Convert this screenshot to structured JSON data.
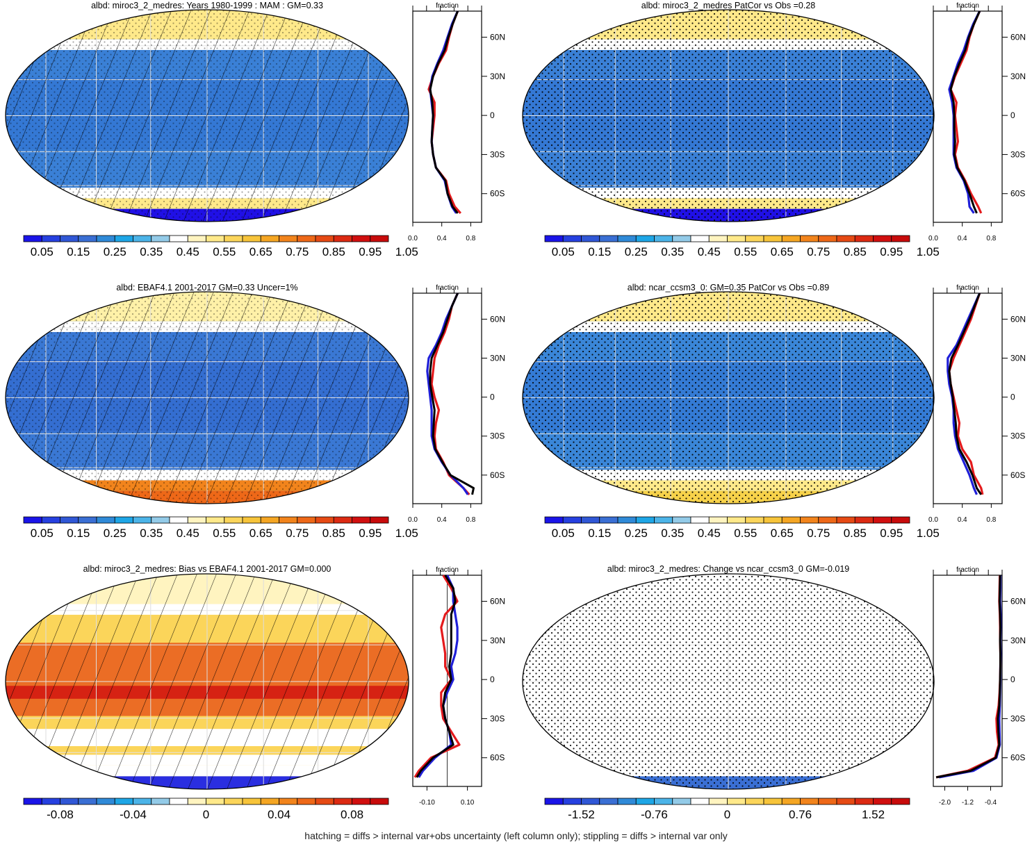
{
  "figure": {
    "footer": "hatching = diffs > internal var+obs uncertainty (left column only); stippling = diffs > internal var only"
  },
  "palette_full": [
    "#1a14e8",
    "#2640e0",
    "#3057d6",
    "#3a6fd4",
    "#2f8ad8",
    "#1ea6e6",
    "#4cb4e8",
    "#93cbe8",
    "#ffffff",
    "#fff4c0",
    "#ffe98a",
    "#fbd55a",
    "#f7c43a",
    "#f5a623",
    "#f2841c",
    "#ee6818",
    "#e64a14",
    "#dc2a12",
    "#d10f0f",
    "#c80b0b"
  ],
  "axis_labels": {
    "lat_ticks": [
      "60N",
      "30N",
      "0",
      "30S",
      "60S"
    ],
    "strip_header": "fraction"
  },
  "panels": [
    {
      "title": "albd: miroc3_2_medres: Years 1980-1999 : MAM : GM=0.33",
      "map_style": "albedo",
      "hatch": true,
      "stipple": true,
      "colorbar_labels": [
        "0.05",
        "0.15",
        "0.25",
        "0.35",
        "0.45",
        "0.55",
        "0.65",
        "0.75",
        "0.85",
        "0.95",
        "1.05"
      ],
      "strip_ticks": [
        "0.0",
        "0.4",
        "0.8"
      ]
    },
    {
      "title": "albd: miroc3_2_medres PatCor vs Obs =0.28",
      "map_style": "albedo",
      "hatch": false,
      "stipple": true,
      "colorbar_labels": [
        "0.05",
        "0.15",
        "0.25",
        "0.35",
        "0.45",
        "0.55",
        "0.65",
        "0.75",
        "0.85",
        "0.95",
        "1.05"
      ],
      "strip_ticks": [
        "0.0",
        "0.4",
        "0.8"
      ]
    },
    {
      "title": "albd: EBAF4.1 2001-2017 GM=0.33 Uncer=1%",
      "map_style": "albedo_obs",
      "hatch": true,
      "stipple": true,
      "colorbar_labels": [
        "0.05",
        "0.15",
        "0.25",
        "0.35",
        "0.45",
        "0.55",
        "0.65",
        "0.75",
        "0.85",
        "0.95",
        "1.05"
      ],
      "strip_ticks": [
        "0.0",
        "0.4",
        "0.8"
      ]
    },
    {
      "title": "albd: ncar_ccsm3_0: GM=0.35 PatCor vs Obs =0.89",
      "map_style": "albedo_ncar",
      "hatch": false,
      "stipple": true,
      "colorbar_labels": [
        "0.05",
        "0.15",
        "0.25",
        "0.35",
        "0.45",
        "0.55",
        "0.65",
        "0.75",
        "0.85",
        "0.95",
        "1.05"
      ],
      "strip_ticks": [
        "0.0",
        "0.4",
        "0.8"
      ]
    },
    {
      "title": "albd: miroc3_2_medres: Bias vs EBAF4.1 2001-2017 GM=0.000",
      "map_style": "bias",
      "hatch": true,
      "stipple": false,
      "colorbar_labels": [
        "-0.08",
        "-0.04",
        "0",
        "0.04",
        "0.08"
      ],
      "strip_ticks": [
        "-0.10",
        "0.10"
      ]
    },
    {
      "title": "albd: miroc3_2_medres: Change vs ncar_ccsm3_0 GM=-0.019",
      "map_style": "change",
      "hatch": false,
      "stipple": true,
      "colorbar_labels": [
        "-1.52",
        "-0.76",
        "0",
        "0.76",
        "1.52"
      ],
      "strip_ticks": [
        "-2.0",
        "-1.2",
        "-0.4"
      ]
    }
  ],
  "chart_data": [
    {
      "type": "line",
      "title": "albd: miroc3_2_medres: Years 1980-1999 : MAM : GM=0.33",
      "xlabel": "fraction",
      "xlim": [
        0.0,
        0.95
      ],
      "ylim": [
        -90,
        90
      ],
      "x_ticks": [
        "0.0",
        "0.4",
        "0.8"
      ],
      "y_ticks": [
        "60N",
        "30N",
        "0",
        "30S",
        "60S"
      ],
      "lat": [
        80,
        70,
        60,
        50,
        40,
        30,
        20,
        10,
        0,
        -10,
        -20,
        -30,
        -40,
        -50,
        -60,
        -70,
        -75
      ],
      "series": [
        {
          "color": "#e41a1c",
          "values": [
            0.62,
            0.55,
            0.5,
            0.46,
            0.36,
            0.28,
            0.22,
            0.3,
            0.3,
            0.28,
            0.26,
            0.28,
            0.32,
            0.46,
            0.5,
            0.58,
            0.66
          ]
        },
        {
          "color": "#1f1fd8",
          "values": [
            0.62,
            0.54,
            0.48,
            0.42,
            0.34,
            0.27,
            0.24,
            0.26,
            0.28,
            0.27,
            0.26,
            0.28,
            0.32,
            0.44,
            0.48,
            0.54,
            0.6
          ]
        },
        {
          "color": "#000000",
          "values": [
            0.62,
            0.55,
            0.49,
            0.44,
            0.35,
            0.28,
            0.24,
            0.27,
            0.28,
            0.27,
            0.26,
            0.28,
            0.32,
            0.45,
            0.48,
            0.55,
            0.62
          ]
        }
      ]
    },
    {
      "type": "line",
      "title": "albd: miroc3_2_medres PatCor vs Obs =0.28",
      "xlabel": "fraction",
      "xlim": [
        0.0,
        0.95
      ],
      "ylim": [
        -90,
        90
      ],
      "x_ticks": [
        "0.0",
        "0.4",
        "0.8"
      ],
      "y_ticks": [
        "60N",
        "30N",
        "0",
        "30S",
        "60S"
      ],
      "lat": [
        80,
        70,
        60,
        50,
        40,
        30,
        20,
        10,
        0,
        -10,
        -20,
        -30,
        -40,
        -50,
        -60,
        -70,
        -75
      ],
      "series": [
        {
          "color": "#e41a1c",
          "values": [
            0.64,
            0.56,
            0.5,
            0.46,
            0.38,
            0.3,
            0.24,
            0.32,
            0.3,
            0.32,
            0.34,
            0.3,
            0.34,
            0.44,
            0.52,
            0.62,
            0.66
          ]
        },
        {
          "color": "#1f1fd8",
          "values": [
            0.64,
            0.55,
            0.48,
            0.42,
            0.34,
            0.28,
            0.22,
            0.26,
            0.28,
            0.28,
            0.28,
            0.28,
            0.32,
            0.42,
            0.48,
            0.5,
            0.56
          ]
        },
        {
          "color": "#000000",
          "values": [
            0.64,
            0.56,
            0.49,
            0.44,
            0.36,
            0.29,
            0.24,
            0.28,
            0.29,
            0.29,
            0.3,
            0.29,
            0.33,
            0.43,
            0.5,
            0.56,
            0.6
          ]
        }
      ]
    },
    {
      "type": "line",
      "title": "albd: EBAF4.1 2001-2017 GM=0.33 Uncer=1%",
      "xlabel": "fraction",
      "xlim": [
        0.0,
        0.95
      ],
      "ylim": [
        -90,
        90
      ],
      "x_ticks": [
        "0.0",
        "0.4",
        "0.8"
      ],
      "y_ticks": [
        "60N",
        "30N",
        "0",
        "30S",
        "60S"
      ],
      "lat": [
        80,
        70,
        60,
        50,
        40,
        30,
        20,
        10,
        0,
        -10,
        -20,
        -30,
        -40,
        -50,
        -60,
        -70,
        -75
      ],
      "series": [
        {
          "color": "#e41a1c",
          "values": [
            0.62,
            0.54,
            0.5,
            0.44,
            0.36,
            0.3,
            0.28,
            0.26,
            0.3,
            0.36,
            0.32,
            0.3,
            0.32,
            0.42,
            0.5,
            0.7,
            0.78
          ]
        },
        {
          "color": "#1f1fd8",
          "values": [
            0.62,
            0.54,
            0.46,
            0.4,
            0.32,
            0.22,
            0.2,
            0.22,
            0.24,
            0.26,
            0.26,
            0.26,
            0.3,
            0.4,
            0.52,
            0.7,
            0.76
          ]
        },
        {
          "color": "#000000",
          "values": [
            0.62,
            0.54,
            0.48,
            0.42,
            0.34,
            0.26,
            0.24,
            0.24,
            0.27,
            0.3,
            0.29,
            0.28,
            0.31,
            0.41,
            0.52,
            0.84,
            0.82
          ]
        }
      ]
    },
    {
      "type": "line",
      "title": "albd: ncar_ccsm3_0: GM=0.35 PatCor vs Obs =0.89",
      "xlabel": "fraction",
      "xlim": [
        0.0,
        0.95
      ],
      "ylim": [
        -90,
        90
      ],
      "x_ticks": [
        "0.0",
        "0.4",
        "0.8"
      ],
      "y_ticks": [
        "60N",
        "30N",
        "0",
        "30S",
        "60S"
      ],
      "lat": [
        80,
        70,
        60,
        50,
        40,
        30,
        20,
        10,
        0,
        -10,
        -20,
        -30,
        -40,
        -50,
        -60,
        -70,
        -75
      ],
      "series": [
        {
          "color": "#e41a1c",
          "values": [
            0.64,
            0.58,
            0.52,
            0.44,
            0.36,
            0.28,
            0.22,
            0.24,
            0.28,
            0.32,
            0.36,
            0.34,
            0.4,
            0.52,
            0.56,
            0.66,
            0.68
          ]
        },
        {
          "color": "#1f1fd8",
          "values": [
            0.64,
            0.56,
            0.48,
            0.4,
            0.32,
            0.2,
            0.2,
            0.22,
            0.26,
            0.28,
            0.28,
            0.3,
            0.34,
            0.42,
            0.5,
            0.56,
            0.6
          ]
        },
        {
          "color": "#000000",
          "values": [
            0.64,
            0.57,
            0.5,
            0.42,
            0.34,
            0.25,
            0.22,
            0.24,
            0.27,
            0.29,
            0.31,
            0.32,
            0.36,
            0.46,
            0.54,
            0.6,
            0.66
          ]
        }
      ]
    },
    {
      "type": "line",
      "title": "albd: miroc3_2_medres: Bias vs EBAF4.1 2001-2017 GM=0.000",
      "xlabel": "fraction",
      "xlim": [
        -0.17,
        0.17
      ],
      "ylim": [
        -90,
        90
      ],
      "x_ticks": [
        "-0.10",
        "0.10"
      ],
      "y_ticks": [
        "60N",
        "30N",
        "0",
        "30S",
        "60S"
      ],
      "lat": [
        80,
        70,
        60,
        50,
        40,
        30,
        20,
        10,
        0,
        -10,
        -20,
        -30,
        -40,
        -50,
        -60,
        -70,
        -75
      ],
      "series": [
        {
          "color": "#e41a1c",
          "values": [
            -0.02,
            0.02,
            0.05,
            -0.01,
            -0.03,
            -0.02,
            -0.01,
            -0.01,
            0.02,
            -0.03,
            -0.03,
            -0.02,
            0.02,
            0.06,
            -0.08,
            -0.14,
            -0.16
          ]
        },
        {
          "color": "#1f1fd8",
          "values": [
            0.0,
            0.03,
            0.03,
            0.04,
            0.05,
            0.05,
            0.04,
            0.02,
            0.03,
            0.0,
            -0.02,
            -0.01,
            0.01,
            0.02,
            -0.06,
            -0.12,
            -0.14
          ]
        },
        {
          "color": "#000000",
          "values": [
            -0.01,
            0.03,
            0.04,
            0.02,
            0.02,
            0.02,
            0.02,
            0.01,
            0.02,
            -0.01,
            -0.02,
            -0.01,
            0.01,
            0.03,
            -0.07,
            -0.13,
            -0.15
          ]
        }
      ]
    },
    {
      "type": "line",
      "title": "albd: miroc3_2_medres: Change vs ncar_ccsm3_0 GM=-0.019",
      "xlabel": "fraction",
      "xlim": [
        -2.4,
        0.0
      ],
      "ylim": [
        -90,
        90
      ],
      "x_ticks": [
        "-2.0",
        "-1.2",
        "-0.4"
      ],
      "y_ticks": [
        "60N",
        "30N",
        "0",
        "30S",
        "60S"
      ],
      "lat": [
        80,
        70,
        60,
        50,
        40,
        30,
        20,
        10,
        0,
        -10,
        -20,
        -30,
        -40,
        -50,
        -60,
        -70,
        -75
      ],
      "series": [
        {
          "color": "#e41a1c",
          "values": [
            -0.08,
            -0.09,
            -0.1,
            -0.08,
            -0.07,
            -0.07,
            -0.06,
            -0.06,
            -0.07,
            -0.09,
            -0.12,
            -0.2,
            -0.18,
            -0.12,
            -0.25,
            -1.2,
            -2.3
          ]
        },
        {
          "color": "#1f1fd8",
          "values": [
            -0.06,
            -0.06,
            -0.07,
            -0.05,
            -0.05,
            -0.06,
            -0.05,
            -0.06,
            -0.06,
            -0.07,
            -0.08,
            -0.1,
            -0.09,
            -0.08,
            -0.2,
            -1.0,
            -2.2
          ]
        },
        {
          "color": "#000000",
          "values": [
            -0.07,
            -0.08,
            -0.09,
            -0.07,
            -0.06,
            -0.07,
            -0.06,
            -0.06,
            -0.07,
            -0.08,
            -0.1,
            -0.15,
            -0.13,
            -0.1,
            -0.22,
            -1.1,
            -2.3
          ]
        }
      ]
    }
  ]
}
